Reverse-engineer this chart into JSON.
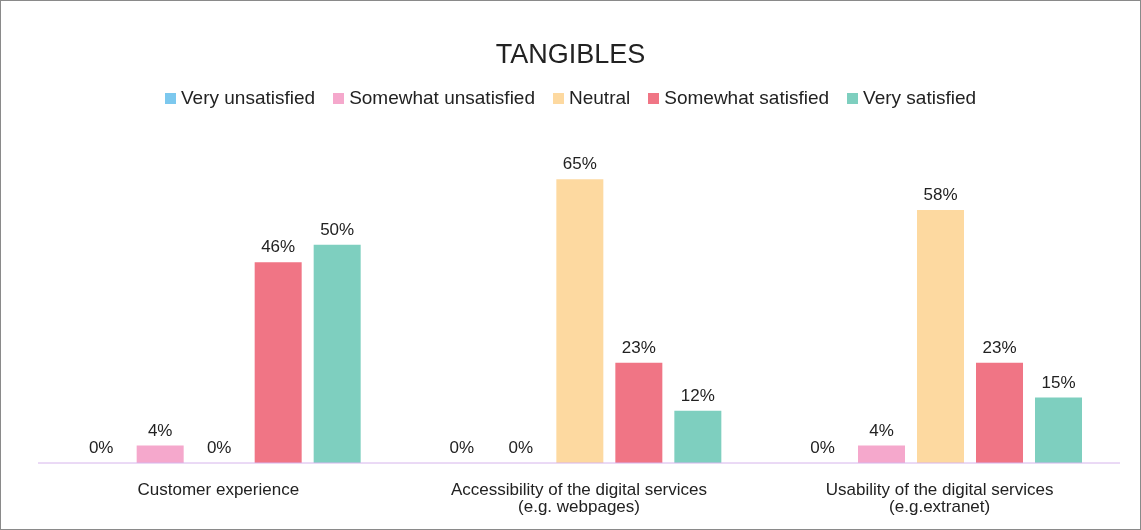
{
  "chart_data": {
    "type": "bar",
    "title": "TANGIBLES",
    "legend": "top",
    "categories": [
      "Customer experience",
      "Accessibility of the digital services (e.g. webpages)",
      "Usability of the digital services (e.g.extranet)"
    ],
    "series": [
      {
        "name": "Very unsatisfied",
        "color": "#7cc8ee",
        "values": [
          0,
          0,
          0
        ],
        "value_labels": [
          "0%",
          "0%",
          "0%"
        ]
      },
      {
        "name": "Somewhat unsatisfied",
        "color": "#f5a8cc",
        "values": [
          4,
          0,
          4
        ],
        "value_labels": [
          "4%",
          "0%",
          "4%"
        ]
      },
      {
        "name": "Neutral",
        "color": "#fdd9a0",
        "values": [
          0,
          65,
          58
        ],
        "value_labels": [
          "0%",
          "65%",
          "58%"
        ]
      },
      {
        "name": "Somewhat satisfied",
        "color": "#f07585",
        "values": [
          46,
          23,
          23
        ],
        "value_labels": [
          "46%",
          "23%",
          "23%"
        ]
      },
      {
        "name": "Very satisfied",
        "color": "#7ecfbf",
        "values": [
          50,
          12,
          15
        ],
        "value_labels": [
          "50%",
          "12%",
          "15%"
        ]
      }
    ],
    "grid": false
  }
}
